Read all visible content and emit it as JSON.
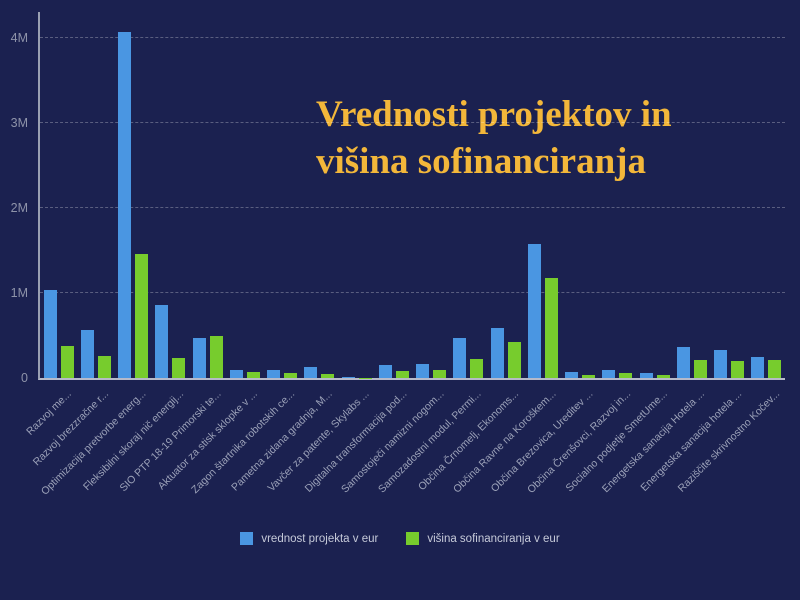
{
  "title": {
    "line1": "Vrednosti projektov in",
    "line2": "višina sofinanciranja"
  },
  "colors": {
    "background": "#1b2150",
    "bar_blue": "#4a96e2",
    "bar_green": "#77cc2d",
    "title_gold": "#f3b73a",
    "axis_line": "#b6bac9",
    "gridline": "rgba(255,255,255,0.28)",
    "y_tick_text": "#8e93a9",
    "x_label_text": "#9ba1b8",
    "legend_text": "#c6cad9"
  },
  "y_axis": {
    "ticks": [
      {
        "label": "4M",
        "value": 4000000
      },
      {
        "label": "3M",
        "value": 3000000
      },
      {
        "label": "2M",
        "value": 2000000
      },
      {
        "label": "1M",
        "value": 1000000
      },
      {
        "label": "0",
        "value": 0
      }
    ]
  },
  "legend": {
    "items": [
      {
        "label": "vrednost projekta v eur",
        "color": "#4a96e2"
      },
      {
        "label": "višina sofinanciranja v eur",
        "color": "#77cc2d"
      }
    ]
  },
  "chart_data": {
    "type": "bar",
    "title": "Vrednosti projektov in višina sofinanciranja",
    "xlabel": "",
    "ylabel": "",
    "ylim": [
      0,
      4300000
    ],
    "grid": true,
    "legend_position": "bottom",
    "categories": [
      "Razvoj me...",
      "Razvoj brezzračne r...",
      "Optimizacija pretvorbe energ...",
      "Fleksibilni skoraj nič energij...",
      "SIO PTP 18-19 Primorski te...",
      "Aktuator za stisk sklopke v ...",
      "Zagon štartnika robotskih ce...",
      "Pametna zidana gradnja, M...",
      "Vavčer za patente, Skylabs ...",
      "Digitalna transformacija pod...",
      "Samostoječi namizni nogom...",
      "Samozadostni modul, Permi...",
      "Občina Črnomelj, Ekonoms...",
      "Občina Ravne na Koroškem...",
      "Občina Brezovica, Ureditev ...",
      "Občina Črenšovci, Razvoj in...",
      "Socialno podjetje SmetUme...",
      "Energetska sanacija Hotela ...",
      "Energetska sanacija hotela ...",
      "Raziščite skrivnostno Kočev..."
    ],
    "series": [
      {
        "name": "vrednost projekta v eur",
        "color": "#4a96e2",
        "values": [
          1030000,
          560000,
          4070000,
          860000,
          470000,
          90000,
          95000,
          125000,
          10000,
          150000,
          160000,
          470000,
          590000,
          1580000,
          70000,
          90000,
          55000,
          360000,
          330000,
          250000
        ]
      },
      {
        "name": "višina sofinanciranja v eur",
        "color": "#77cc2d",
        "values": [
          380000,
          260000,
          1460000,
          240000,
          490000,
          65000,
          55000,
          45000,
          5000,
          85000,
          90000,
          220000,
          420000,
          1180000,
          40000,
          60000,
          30000,
          210000,
          200000,
          215000
        ]
      }
    ]
  }
}
